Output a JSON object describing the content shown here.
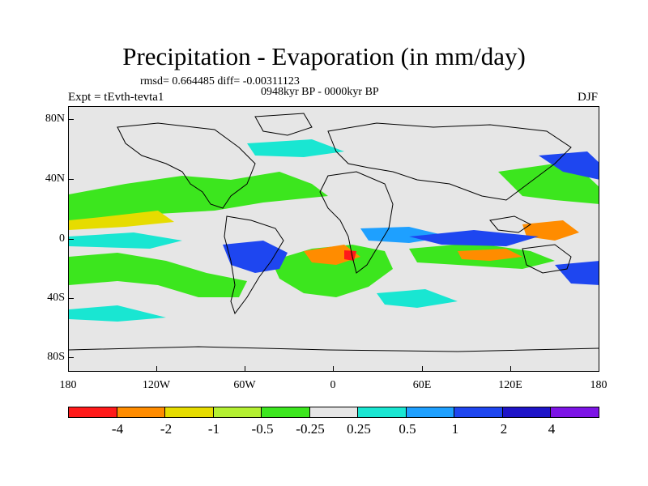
{
  "header": {
    "title": "Precipitation - Evaporation (in mm/day)",
    "stats": "rmsd= 0.664485 diff= -0.00311123",
    "period": "0948kyr BP - 0000kyr BP",
    "experiment": "Expt = tEvth-tevta1",
    "season": "DJF"
  },
  "map": {
    "lat_labels": [
      "80N",
      "40N",
      "0",
      "40S",
      "80S"
    ],
    "lon_labels": [
      "180",
      "120W",
      "60W",
      "0",
      "60E",
      "120E",
      "180"
    ],
    "background_color": "#e6e6e6"
  },
  "colorbar": {
    "labels": [
      "-4",
      "-2",
      "-1",
      "-0.5",
      "-0.25",
      "0.25",
      "0.5",
      "1",
      "2",
      "4"
    ],
    "colors": [
      "#ff1a1a",
      "#ff8c00",
      "#e6dc00",
      "#b4f032",
      "#3ce61e",
      "#e6e6e6",
      "#19e6d2",
      "#1ea0ff",
      "#1e46f0",
      "#1e14c8",
      "#7d14e6"
    ]
  }
}
